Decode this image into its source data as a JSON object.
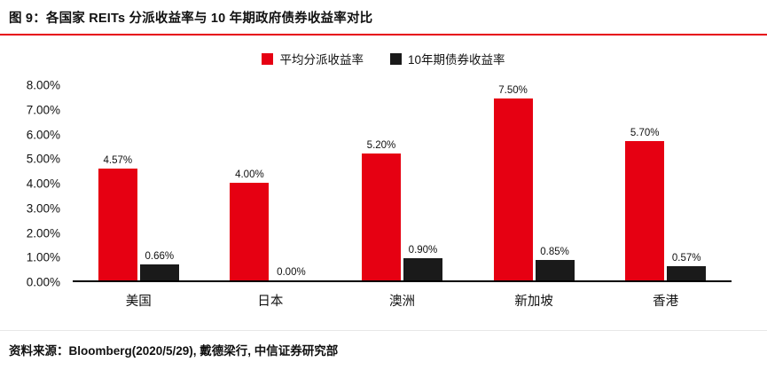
{
  "title": "图 9：各国家 REITs 分派收益率与 10 年期政府债券收益率对比",
  "source": "资料来源：Bloomberg(2020/5/29), 戴德梁行, 中信证券研究部",
  "colors": {
    "accent_line": "#e60012",
    "series1": "#e60012",
    "series2": "#1a1a1a"
  },
  "legend": {
    "item1": "平均分派收益率",
    "item2": "10年期债券收益率"
  },
  "chart_data": {
    "type": "bar",
    "categories": [
      "美国",
      "日本",
      "澳洲",
      "新加坡",
      "香港"
    ],
    "series": [
      {
        "name": "平均分派收益率",
        "color": "#e60012",
        "values": [
          4.57,
          4.0,
          5.2,
          7.5,
          5.7
        ],
        "labels": [
          "4.57%",
          "4.00%",
          "5.20%",
          "7.50%",
          "5.70%"
        ]
      },
      {
        "name": "10年期债券收益率",
        "color": "#1a1a1a",
        "values": [
          0.66,
          0.0,
          0.9,
          0.85,
          0.57
        ],
        "labels": [
          "0.66%",
          "0.00%",
          "0.90%",
          "0.85%",
          "0.57%"
        ]
      }
    ],
    "ylim": [
      0,
      8
    ],
    "yticks": [
      "8.00%",
      "7.00%",
      "6.00%",
      "5.00%",
      "4.00%",
      "3.00%",
      "2.00%",
      "1.00%",
      "0.00%"
    ],
    "grid": false,
    "legend_position": "top"
  }
}
